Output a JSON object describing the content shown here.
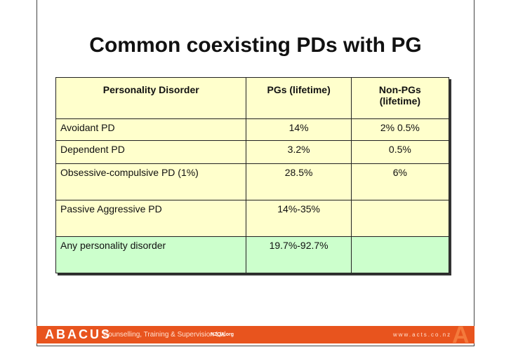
{
  "title": "Common coexisting PDs with PG",
  "table": {
    "header": [
      "Personality Disorder",
      "PGs (lifetime)",
      "Non-PGs (lifetime)"
    ],
    "rows": [
      [
        "Avoidant PD",
        "14%",
        "2% 0.5%"
      ],
      [
        "Dependent PD",
        "3.2%",
        "0.5%"
      ],
      [
        "Obsessive-compulsive PD (1%)",
        "28.5%",
        "6%"
      ],
      [
        "Passive Aggressive PD",
        "14%-35%"
      ],
      [
        "Any personality disorder",
        "19.7%-92.7%"
      ]
    ]
  },
  "footer": {
    "brand": "ABACUS",
    "tagline": "Counselling, Training & Supervision Ltd",
    "badge": "NZQA.org",
    "url": "www.acts.co.nz",
    "logo": "A"
  }
}
